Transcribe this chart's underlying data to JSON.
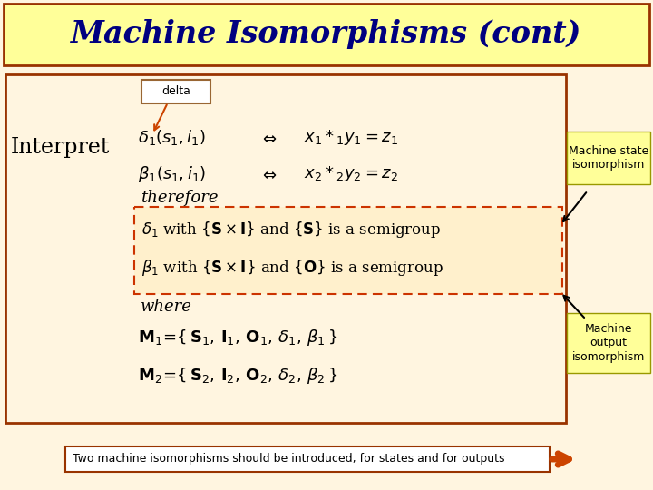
{
  "title": "Machine Isomorphisms (cont)",
  "title_bg": "#FFFF99",
  "title_color": "#000080",
  "slide_bg": "#FFF5E0",
  "main_box_color": "#993300",
  "dashed_box_color": "#CC3300",
  "delta_label": "delta",
  "delta_box_color": "#996633",
  "interpret_label": "Interpret",
  "state_iso": "Machine state\nisomorphism",
  "output_iso": "Machine\noutput\nisomorphism",
  "bottom_text": "Two machine isomorphisms should be introduced, for states and for outputs",
  "bottom_box_color": "#993300",
  "arrow_color": "#CC4400"
}
